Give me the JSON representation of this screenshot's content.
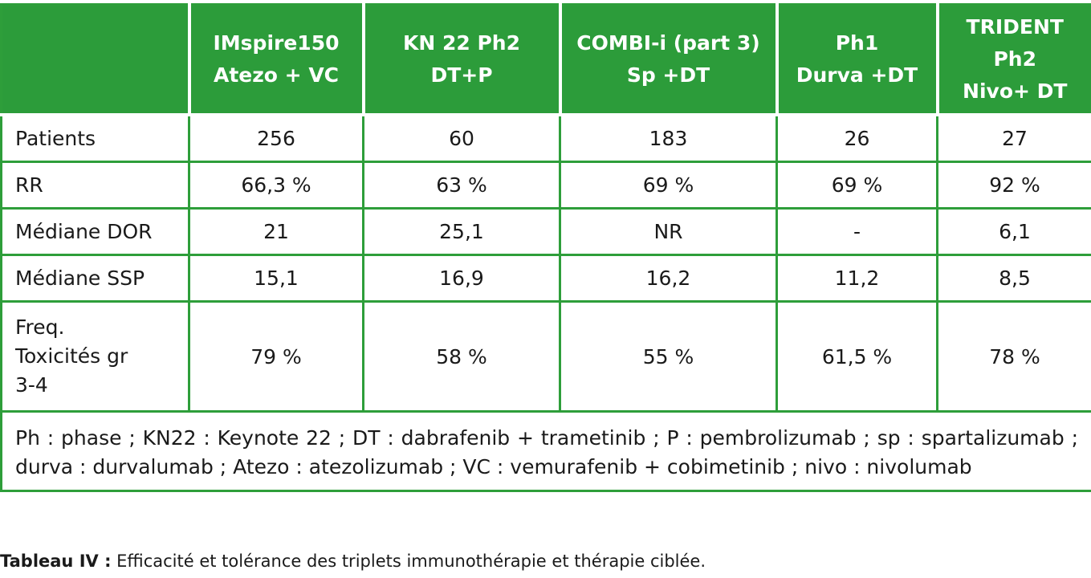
{
  "table": {
    "headers": [
      [
        ""
      ],
      [
        "IMspire150",
        "Atezo + VC"
      ],
      [
        "KN 22 Ph2",
        "DT+P"
      ],
      [
        "COMBI-i (part 3)",
        "Sp +DT"
      ],
      [
        "Ph1",
        "Durva +DT"
      ],
      [
        "TRIDENT",
        "Ph2",
        "Nivo+ DT"
      ]
    ],
    "rows": [
      {
        "label": "Patients",
        "values": [
          "256",
          "60",
          "183",
          "26",
          "27"
        ]
      },
      {
        "label": "RR",
        "values": [
          "66,3 %",
          "63 %",
          "69 %",
          "69 %",
          "92 %"
        ]
      },
      {
        "label": "Médiane DOR",
        "values": [
          "21",
          "25,1",
          "NR",
          "-",
          "6,1"
        ]
      },
      {
        "label": "Médiane SSP",
        "values": [
          "15,1",
          "16,9",
          "16,2",
          "11,2",
          "8,5"
        ]
      },
      {
        "label_lines": [
          "Freq.",
          "Toxicités gr",
          "3-4"
        ],
        "values": [
          "79 %",
          "58 %",
          "55 %",
          "61,5 %",
          "78 %"
        ]
      }
    ],
    "footnote": "Ph : phase ; KN22 : Keynote 22 ; DT : dabrafenib + trametinib ; P : pembrolizumab ; sp : spartalizumab ; durva : durvalumab ; Atezo : atezolizumab ; VC : vemurafenib + cobimetinib ; nivo : nivolumab"
  },
  "caption": {
    "label": "Tableau IV :",
    "text": " Efficacité et tolérance des triplets immunothérapie et thérapie ciblée."
  },
  "colors": {
    "header_bg": "#2c9c3a",
    "border": "#2e9e3a"
  }
}
